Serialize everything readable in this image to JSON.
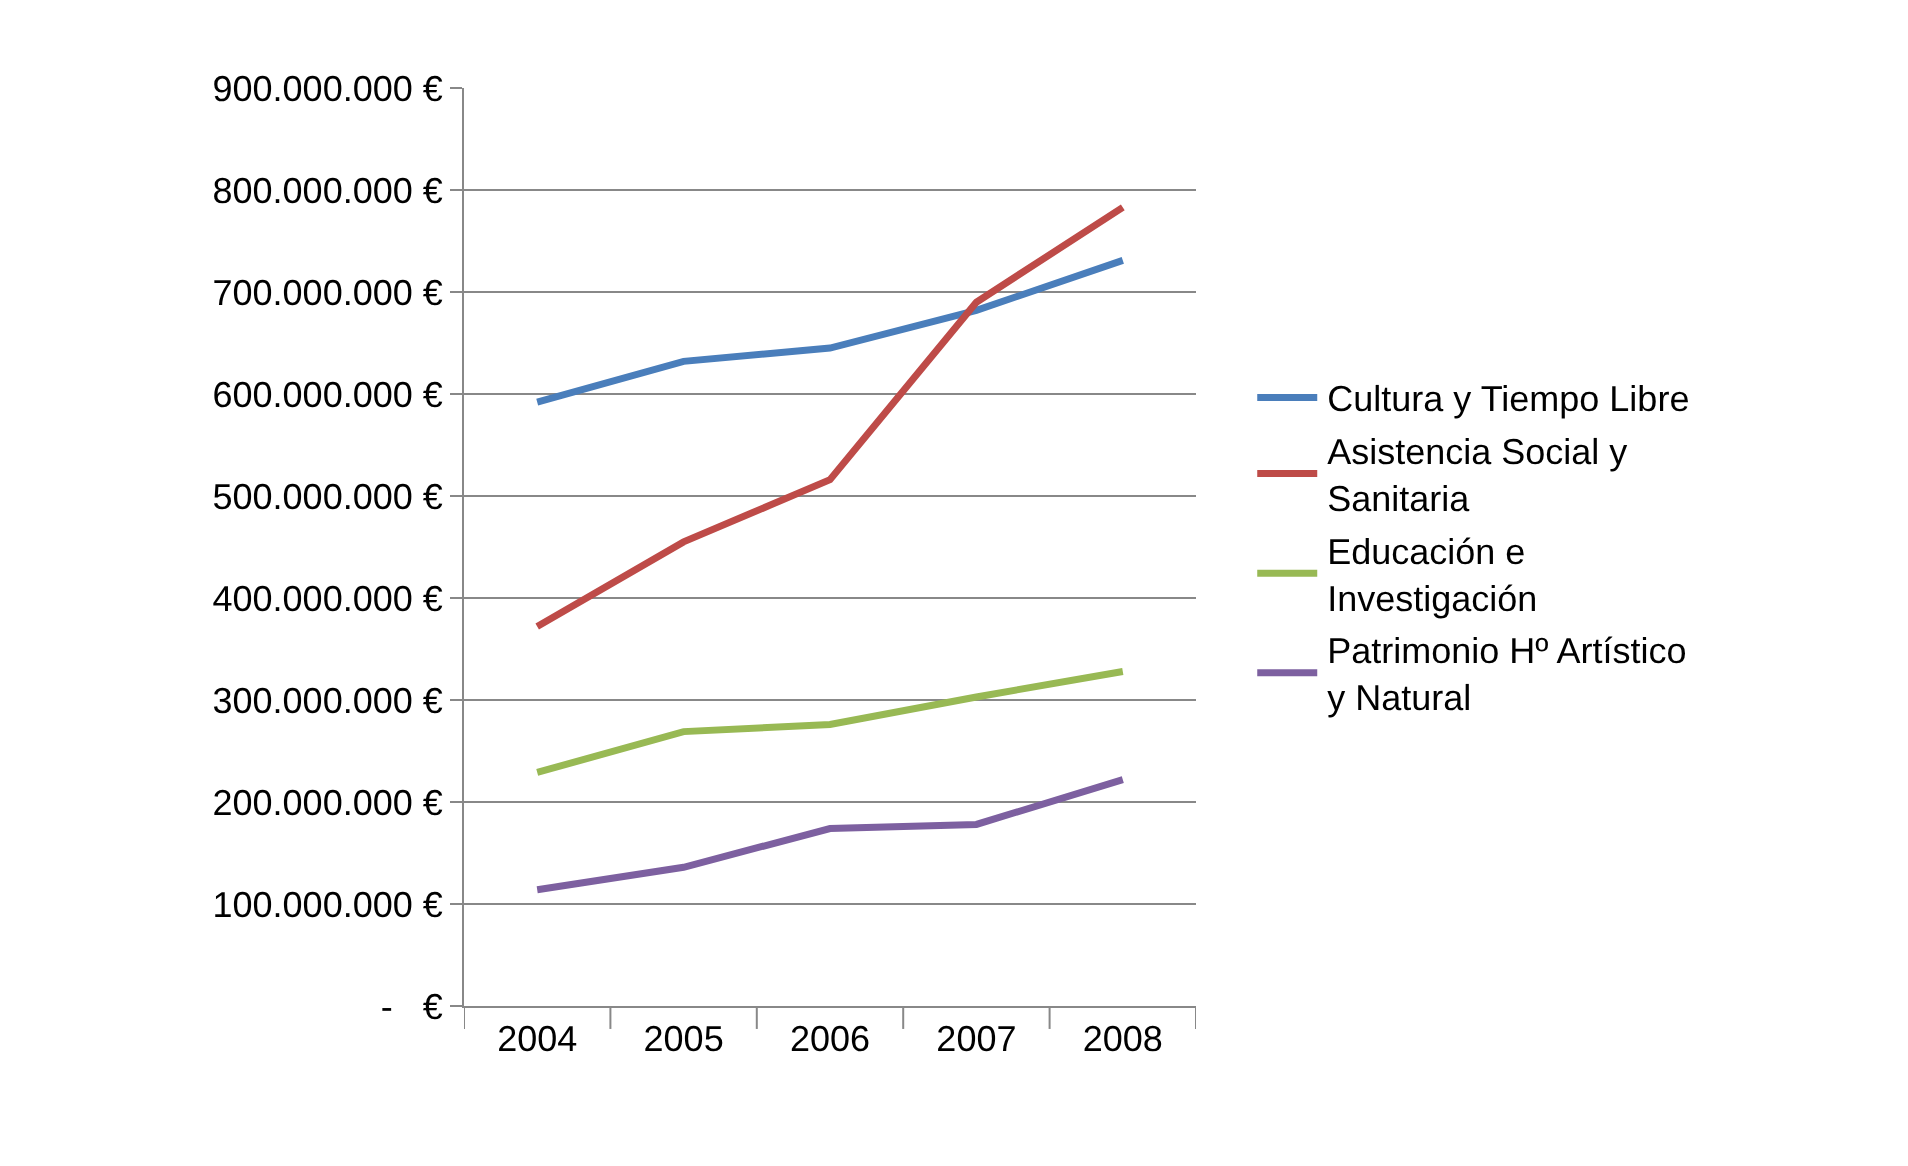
{
  "chart_data": {
    "type": "line",
    "categories": [
      "2004",
      "2005",
      "2006",
      "2007",
      "2008"
    ],
    "series": [
      {
        "name": "Cultura y Tiempo Libre",
        "color": "#4a7ebb",
        "values": [
          592000000,
          632000000,
          645000000,
          682000000,
          731000000
        ]
      },
      {
        "name": "Asistencia Social y Sanitaria",
        "color": "#be4b48",
        "values": [
          372000000,
          455000000,
          516000000,
          690000000,
          783000000
        ]
      },
      {
        "name": "Educación e Investigación",
        "color": "#98b954",
        "values": [
          229000000,
          269000000,
          276000000,
          303000000,
          328000000
        ]
      },
      {
        "name": "Patrimonio Hº Artístico y Natural",
        "color": "#7d60a0",
        "values": [
          114000000,
          136000000,
          174000000,
          178000000,
          222000000
        ]
      }
    ],
    "ylim": [
      0,
      900000000
    ],
    "yticks": [
      {
        "value": 0,
        "label": "-   €"
      },
      {
        "value": 100000000,
        "label": "100.000.000 €"
      },
      {
        "value": 200000000,
        "label": "200.000.000 €"
      },
      {
        "value": 300000000,
        "label": "300.000.000 €"
      },
      {
        "value": 400000000,
        "label": "400.000.000 €"
      },
      {
        "value": 500000000,
        "label": "500.000.000 €"
      },
      {
        "value": 600000000,
        "label": "600.000.000 €"
      },
      {
        "value": 700000000,
        "label": "700.000.000 €"
      },
      {
        "value": 800000000,
        "label": "800.000.000 €"
      },
      {
        "value": 900000000,
        "label": "900.000.000 €"
      }
    ],
    "grid": "y",
    "legend": "right",
    "marker": "none",
    "line_style": "solid"
  }
}
